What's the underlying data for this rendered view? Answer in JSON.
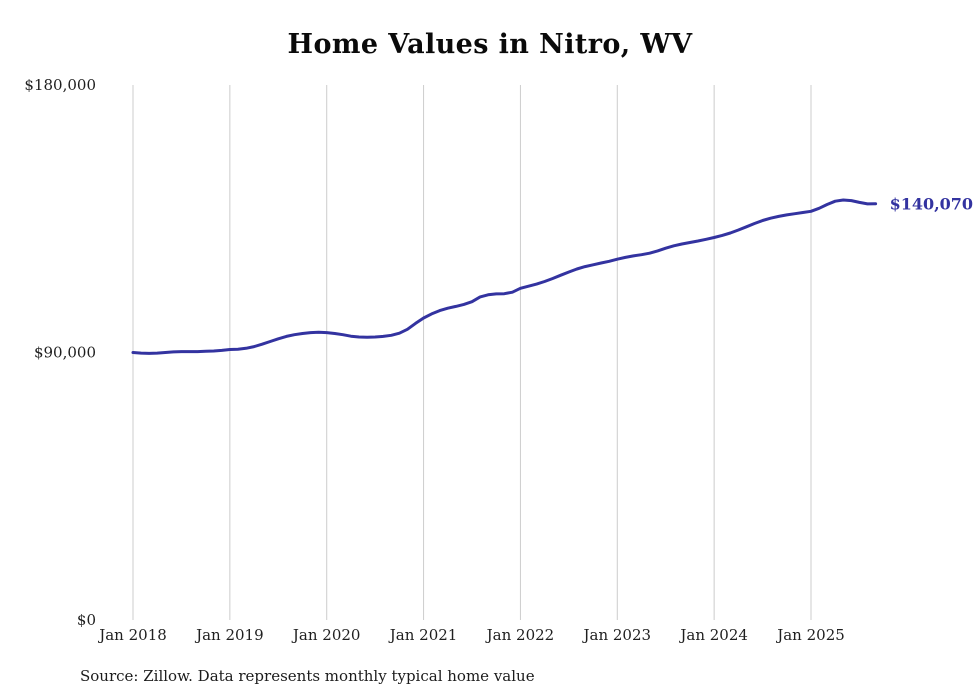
{
  "page": {
    "background": "#ffffff"
  },
  "chart_data": {
    "type": "line",
    "title": "Home Values in Nitro, WV",
    "source_note": "Source: Zillow. Data represents monthly typical home value",
    "x": [
      "2018-01",
      "2018-02",
      "2018-03",
      "2018-04",
      "2018-05",
      "2018-06",
      "2018-07",
      "2018-08",
      "2018-09",
      "2018-10",
      "2018-11",
      "2018-12",
      "2019-01",
      "2019-02",
      "2019-03",
      "2019-04",
      "2019-05",
      "2019-06",
      "2019-07",
      "2019-08",
      "2019-09",
      "2019-10",
      "2019-11",
      "2019-12",
      "2020-01",
      "2020-02",
      "2020-03",
      "2020-04",
      "2020-05",
      "2020-06",
      "2020-07",
      "2020-08",
      "2020-09",
      "2020-10",
      "2020-11",
      "2020-12",
      "2021-01",
      "2021-02",
      "2021-03",
      "2021-04",
      "2021-05",
      "2021-06",
      "2021-07",
      "2021-08",
      "2021-09",
      "2021-10",
      "2021-11",
      "2021-12",
      "2022-01",
      "2022-02",
      "2022-03",
      "2022-04",
      "2022-05",
      "2022-06",
      "2022-07",
      "2022-08",
      "2022-09",
      "2022-10",
      "2022-11",
      "2022-12",
      "2023-01",
      "2023-02",
      "2023-03",
      "2023-04",
      "2023-05",
      "2023-06",
      "2023-07",
      "2023-08",
      "2023-09",
      "2023-10",
      "2023-11",
      "2023-12",
      "2024-01",
      "2024-02",
      "2024-03",
      "2024-04",
      "2024-05",
      "2024-06",
      "2024-07",
      "2024-08",
      "2024-09",
      "2024-10",
      "2024-11",
      "2024-12",
      "2025-01",
      "2025-02",
      "2025-03",
      "2025-04",
      "2025-05",
      "2025-06",
      "2025-07",
      "2025-08",
      "2025-09"
    ],
    "values": [
      90000,
      89800,
      89700,
      89800,
      90000,
      90200,
      90300,
      90300,
      90300,
      90400,
      90500,
      90700,
      91000,
      91100,
      91400,
      92000,
      92800,
      93700,
      94600,
      95400,
      96000,
      96400,
      96700,
      96800,
      96700,
      96400,
      96000,
      95500,
      95200,
      95100,
      95200,
      95400,
      95800,
      96500,
      97800,
      99800,
      101600,
      103000,
      104100,
      104900,
      105500,
      106200,
      107100,
      108700,
      109400,
      109700,
      109800,
      110300,
      111600,
      112300,
      113000,
      113900,
      114900,
      116000,
      117100,
      118100,
      118900,
      119500,
      120100,
      120700,
      121400,
      122000,
      122500,
      122900,
      123400,
      124200,
      125100,
      125900,
      126500,
      127000,
      127500,
      128100,
      128700,
      129400,
      130200,
      131200,
      132300,
      133400,
      134400,
      135200,
      135800,
      136300,
      136700,
      137100,
      137500,
      138500,
      139800,
      140900,
      141300,
      141100,
      140500,
      140000,
      140070
    ],
    "x_tick_labels": [
      "Jan 2018",
      "Jan 2019",
      "Jan 2020",
      "Jan 2021",
      "Jan 2022",
      "Jan 2023",
      "Jan 2024",
      "Jan 2025"
    ],
    "y_ticks": [
      {
        "value": 0,
        "label": "$0"
      },
      {
        "value": 90000,
        "label": "$90,000"
      },
      {
        "value": 180000,
        "label": "$180,000"
      }
    ],
    "ylim": [
      0,
      180000
    ],
    "end_label": "$140,070",
    "line_color": "#3333a0",
    "gridline_color": "#cccccc",
    "text_color": "#1f1f1f",
    "grid": "vertical-only",
    "legend": "none"
  }
}
